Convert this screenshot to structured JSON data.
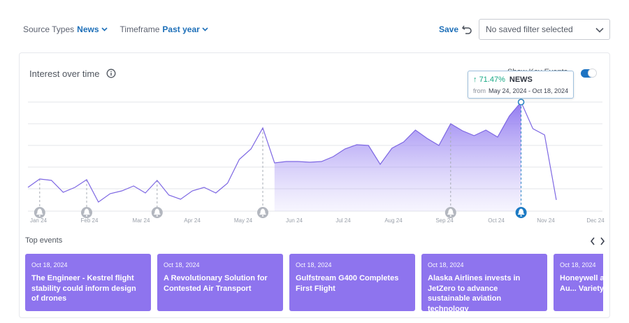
{
  "filters": {
    "source_types": {
      "label": "Source Types",
      "value": "News"
    },
    "timeframe": {
      "label": "Timeframe",
      "value": "Past year"
    }
  },
  "toolbar": {
    "save_label": "Save",
    "saved_filter": "No saved filter selected"
  },
  "panel": {
    "title": "Interest over time",
    "toggle_label": "Show Key Events",
    "toggle_on": true
  },
  "tooltip": {
    "change": "71.47%",
    "source": "NEWS",
    "from_label": "from",
    "range": "May 24, 2024 - Oct 18, 2024"
  },
  "colors": {
    "accent": "#1d6fb8",
    "series": "#7d67e3",
    "card": "#8e74ee",
    "positive": "#17a884"
  },
  "chart_data": {
    "type": "area",
    "x_labels": [
      "Jan 24",
      "Feb 24",
      "Mar 24",
      "Apr 24",
      "May 24",
      "Jun 24",
      "Jul 24",
      "Aug 24",
      "Sep 24",
      "Oct 24",
      "Nov 24",
      "Dec 24"
    ],
    "series": [
      {
        "values": [
          34,
          46,
          44,
          27,
          34,
          45,
          13,
          25,
          29,
          36,
          26,
          44,
          23,
          17,
          29,
          34,
          26,
          40,
          74,
          89,
          119,
          69,
          71,
          71,
          70,
          71,
          78,
          89,
          95,
          94,
          67,
          90,
          99,
          116,
          104,
          94,
          125,
          115,
          108,
          116,
          106,
          136,
          156,
          118,
          109,
          16
        ],
        "highlight_start": 21,
        "highlight_end": 42,
        "marker_index": 42
      }
    ],
    "events": [
      {
        "index": 1,
        "active": false
      },
      {
        "index": 5,
        "active": false
      },
      {
        "index": 11,
        "active": false
      },
      {
        "index": 20,
        "active": false
      },
      {
        "index": 36,
        "active": false
      },
      {
        "index": 42,
        "active": true
      }
    ],
    "grid": true,
    "y_labels": false
  },
  "top_events": {
    "title": "Top events",
    "items": [
      {
        "date": "Oct 18, 2024",
        "headline": "The Engineer - Kestrel flight stability could inform design of drones"
      },
      {
        "date": "Oct 18, 2024",
        "headline": "A Revolutionary Solution for Contested Air Transport"
      },
      {
        "date": "Oct 18, 2024",
        "headline": "Gulfstream G400 Completes First Flight"
      },
      {
        "date": "Oct 18, 2024",
        "headline": "Alaska Airlines invests in JetZero to advance sustainable aviation technology"
      },
      {
        "date": "Oct 18, 2024",
        "headline": "Honeywell and ... to Enable Au... Variety of Ai..."
      }
    ]
  }
}
